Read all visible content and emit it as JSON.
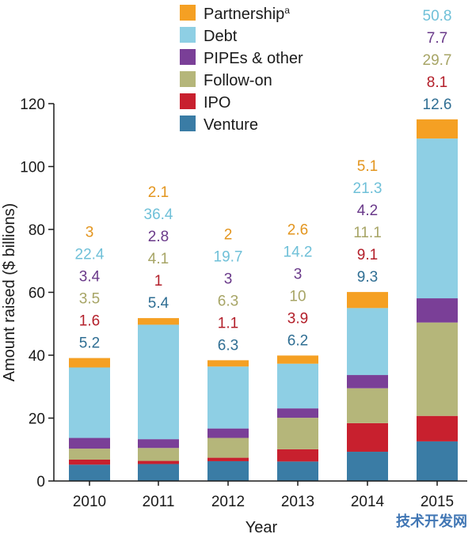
{
  "chart_data": {
    "type": "bar",
    "stacked": true,
    "categories": [
      "2010",
      "2011",
      "2012",
      "2013",
      "2014",
      "2015"
    ],
    "xlabel": "Year",
    "ylabel": "Amount raised ($ billions)",
    "ylim": [
      0,
      120
    ],
    "yticks": [
      0,
      20,
      40,
      60,
      80,
      100,
      120
    ],
    "grid": false,
    "legend_position": "top",
    "series": [
      {
        "name": "Venture",
        "color": "#3a7ca5",
        "values": [
          5.2,
          5.4,
          6.3,
          6.2,
          9.3,
          12.6
        ]
      },
      {
        "name": "IPO",
        "color": "#c8202e",
        "values": [
          1.6,
          1,
          1.1,
          3.9,
          9.1,
          8.1
        ]
      },
      {
        "name": "Follow-on",
        "color": "#b5b67a",
        "values": [
          3.5,
          4.1,
          6.3,
          10,
          11.1,
          29.7
        ]
      },
      {
        "name": "PIPEs & other",
        "color": "#7a3f97",
        "values": [
          3.4,
          2.8,
          3,
          3,
          4.2,
          7.7
        ]
      },
      {
        "name": "Debt",
        "color": "#8ecfe4",
        "values": [
          22.4,
          36.4,
          19.7,
          14.2,
          21.3,
          50.8
        ]
      },
      {
        "name": "Partnership",
        "color": "#f5a023",
        "values": [
          3,
          2.1,
          2,
          2.6,
          5.1,
          6.1
        ],
        "superscript": "a"
      }
    ],
    "label_colors": {
      "Venture": "#2f6e93",
      "IPO": "#b31f2a",
      "Follow-on": "#a7a566",
      "PIPEs & other": "#6a3a8a",
      "Debt": "#6fc0d8",
      "Partnership": "#e3951e"
    }
  },
  "watermark": "技术开发网"
}
